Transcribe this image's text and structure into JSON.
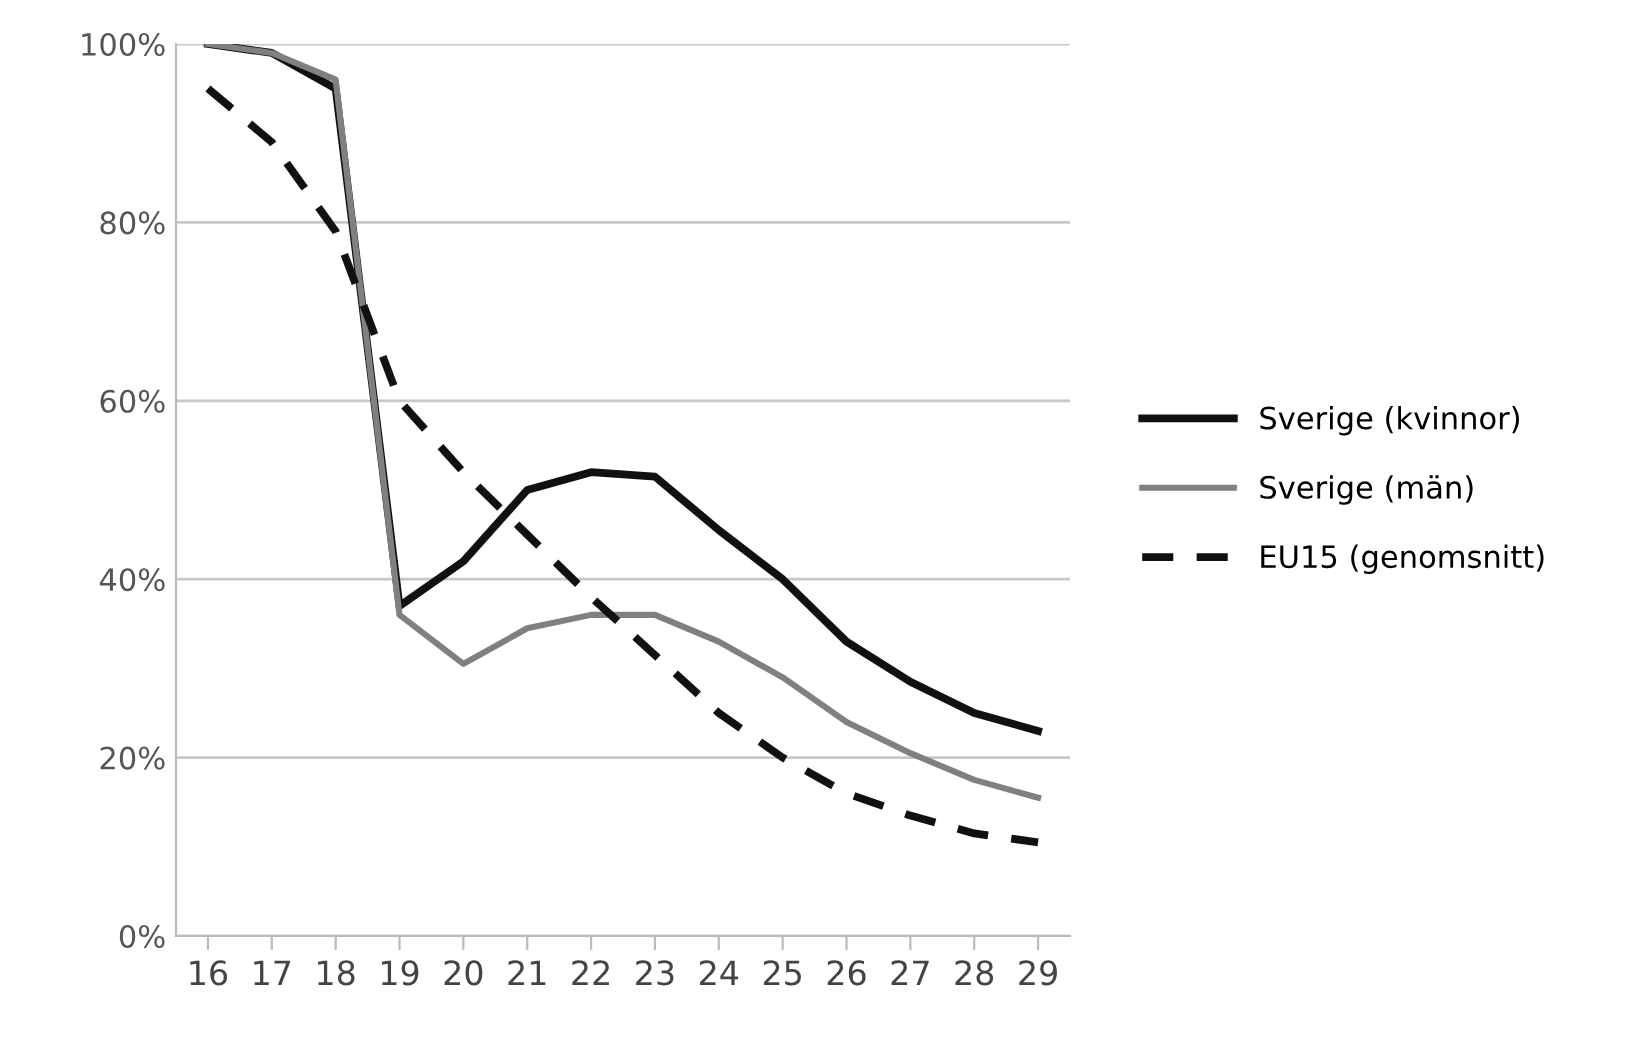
{
  "chart_data": {
    "type": "line",
    "categories": [
      "16",
      "17",
      "18",
      "19",
      "20",
      "21",
      "22",
      "23",
      "24",
      "25",
      "26",
      "27",
      "28",
      "29"
    ],
    "series": [
      {
        "name": "Sverige (kvinnor)",
        "color": "#111111",
        "line_style": "solid",
        "values": [
          100,
          99,
          95,
          37,
          42,
          50,
          52,
          51.5,
          45.5,
          40,
          33,
          28.5,
          25,
          23
        ]
      },
      {
        "name": "Sverige (män)",
        "color": "#808080",
        "line_style": "solid",
        "values": [
          100,
          99,
          96,
          36,
          30.5,
          34.5,
          36,
          36,
          33,
          29,
          24,
          20.5,
          17.5,
          15.5
        ]
      },
      {
        "name": "EU15 (genomsnitt)",
        "color": "#111111",
        "line_style": "dashed",
        "values": [
          95,
          89,
          79,
          60,
          52,
          45,
          38,
          31.5,
          25,
          20,
          16,
          13.5,
          11.5,
          10.5
        ]
      }
    ],
    "ylim": [
      0,
      100
    ],
    "yticks": [
      {
        "value": 0,
        "label": "0%"
      },
      {
        "value": 20,
        "label": "20%"
      },
      {
        "value": 40,
        "label": "40%"
      },
      {
        "value": 60,
        "label": "60%"
      },
      {
        "value": 80,
        "label": "80%"
      },
      {
        "value": 100,
        "label": "100%"
      }
    ],
    "grid": "y",
    "legend": "right",
    "marker": "none"
  }
}
